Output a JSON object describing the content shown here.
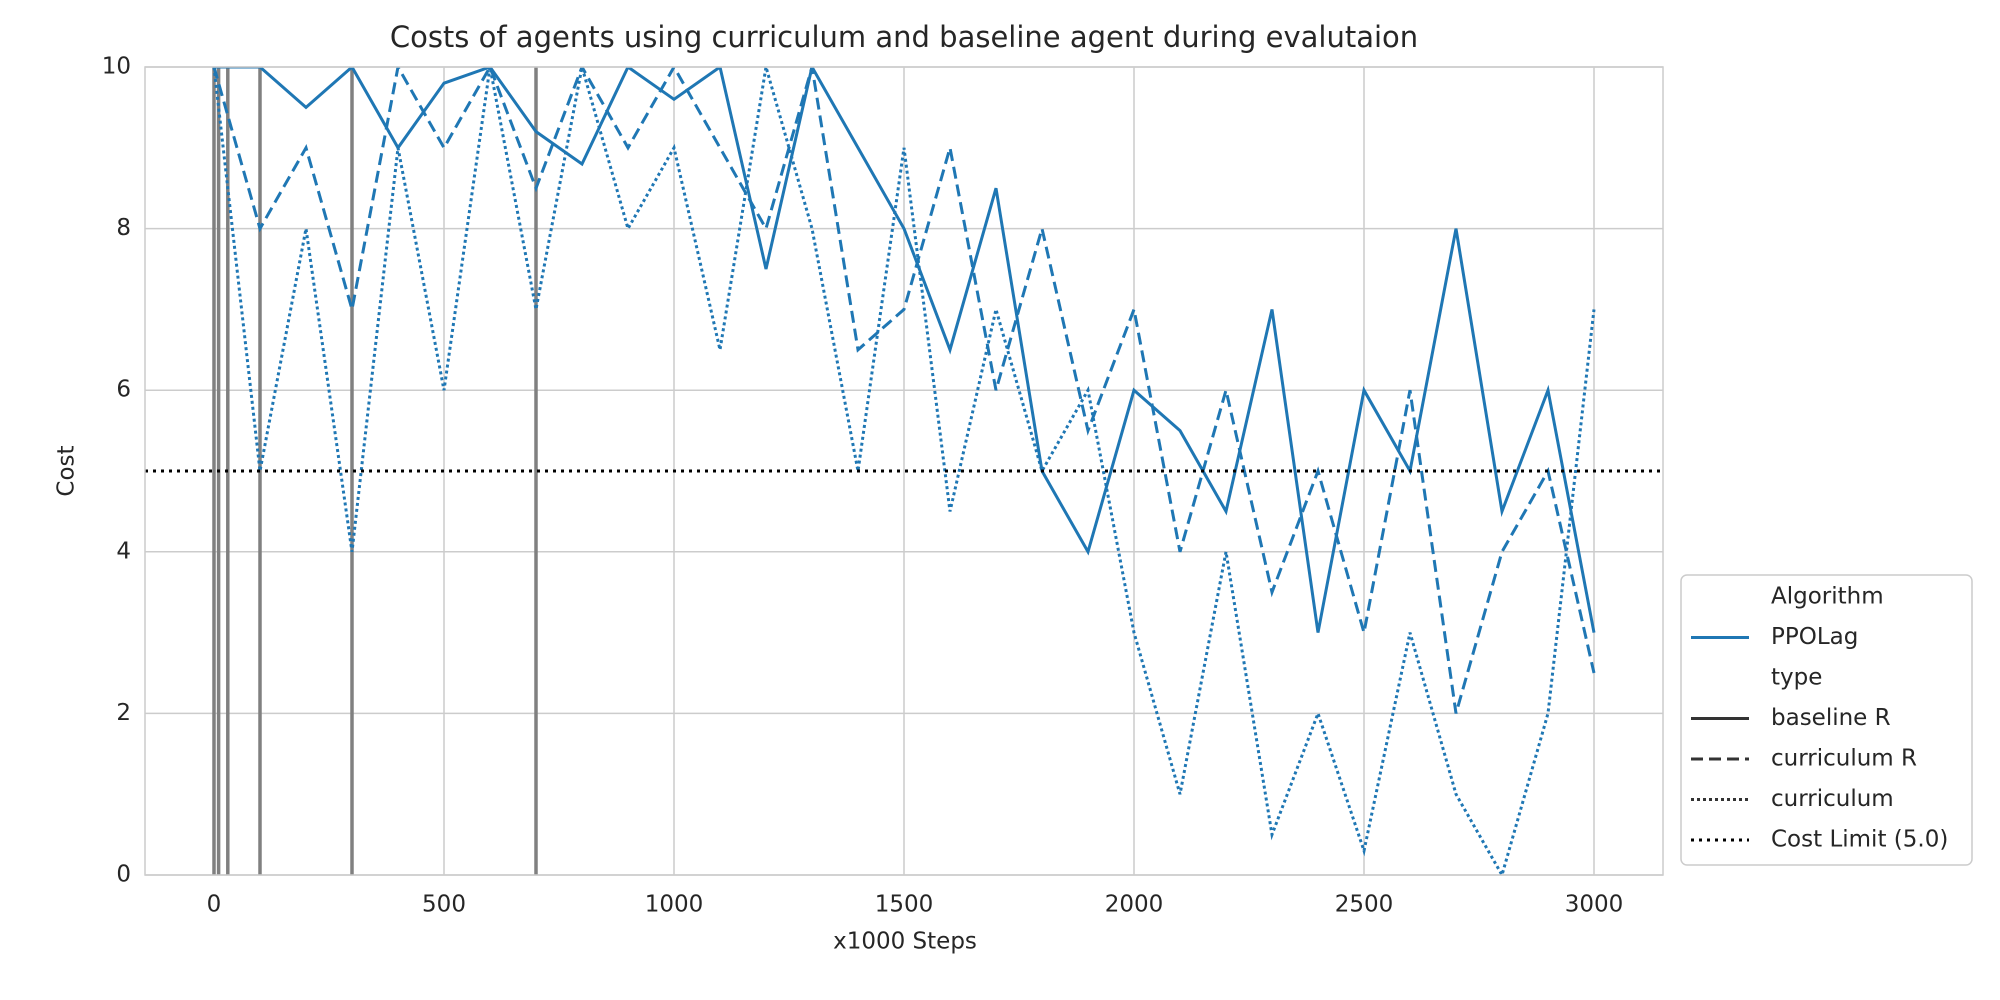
{
  "chart_data": {
    "type": "line",
    "title": "Costs of agents using curriculum and baseline agent during evalutaion",
    "x_label": "x1000 Steps",
    "y_label": "Cost",
    "xlim": [
      -150,
      3150
    ],
    "ylim": [
      0,
      10
    ],
    "xticks": [
      0,
      500,
      1000,
      1500,
      2000,
      2500,
      3000
    ],
    "yticks": [
      0,
      2,
      4,
      6,
      8,
      10
    ],
    "grid": true,
    "legend_position": "lower right outside",
    "hue": {
      "title": "Algorithm",
      "name": "PPOLag",
      "color": "#1f77b4"
    },
    "style_title": "type",
    "x": [
      0,
      100,
      200,
      300,
      400,
      500,
      600,
      700,
      800,
      900,
      1000,
      1100,
      1200,
      1300,
      1400,
      1500,
      1600,
      1700,
      1800,
      1900,
      2000,
      2100,
      2200,
      2300,
      2400,
      2500,
      2600,
      2700,
      2800,
      2900,
      3000
    ],
    "series": [
      {
        "name": "baseline R",
        "dash": "solid",
        "color": "#1f77b4",
        "values": [
          10,
          10,
          9.5,
          10,
          9,
          9.8,
          10,
          9.2,
          8.8,
          10,
          9.6,
          10,
          7.5,
          10,
          9,
          8,
          6.5,
          8.5,
          5,
          4,
          6,
          5.5,
          4.5,
          7,
          3,
          6,
          5,
          8,
          4.5,
          6,
          3
        ]
      },
      {
        "name": "curriculum R",
        "dash": "dashed",
        "color": "#1f77b4",
        "values": [
          10,
          8,
          9,
          7,
          10,
          9,
          10,
          8.5,
          10,
          9,
          10,
          9,
          8,
          10,
          6.5,
          7,
          9,
          6,
          8,
          5.5,
          7,
          4,
          6,
          3.5,
          5,
          3,
          6,
          2,
          4,
          5,
          2.5
        ]
      },
      {
        "name": "curriculum",
        "dash": "dotted",
        "color": "#1f77b4",
        "values": [
          10,
          5,
          8,
          4,
          9,
          6,
          10,
          7,
          10,
          8,
          9,
          6.5,
          10,
          8,
          5,
          9,
          4.5,
          7,
          5,
          6,
          3,
          1,
          4,
          0.5,
          2,
          0.3,
          3,
          1,
          0,
          2,
          7
        ]
      }
    ],
    "vlines": {
      "color": "#808080",
      "values": [
        0,
        10,
        30,
        100,
        300,
        700
      ]
    },
    "hline": {
      "name": "Cost Limit (5.0)",
      "value": 5,
      "color": "#000000"
    }
  }
}
